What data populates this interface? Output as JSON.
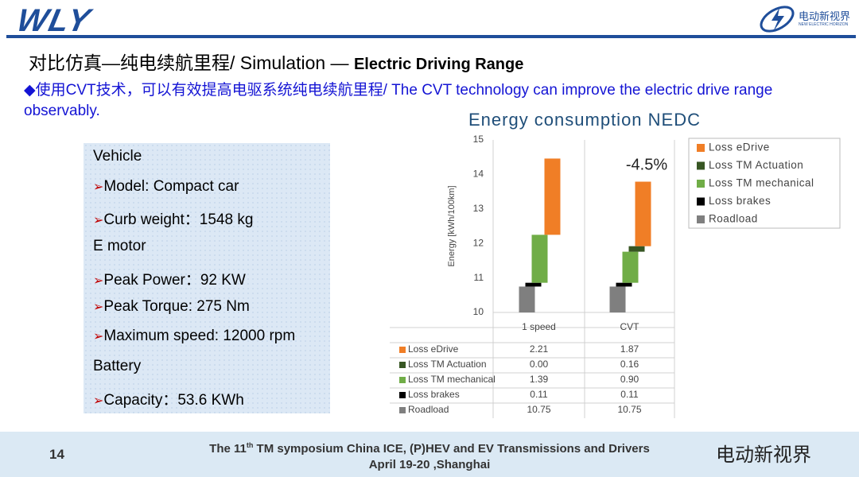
{
  "header": {
    "logo": "WLY",
    "brand": "电动新视界",
    "brand_sub": "NEW ELECTRIC HORIZON"
  },
  "slide": {
    "title": "对比仿真—纯电续航里程/ Simulation — ",
    "title_bold": "Electric Driving Range",
    "lead": "◆使用CVT技术，可以有效提高电驱系统纯电续航里程/  The CVT technology can improve the electric drive range observably.",
    "specs": [
      {
        "text": "Vehicle",
        "bullet": false
      },
      {
        "text": "Model: Compact car",
        "bullet": true
      },
      {
        "text": "Curb weight：1548  kg",
        "bullet": true
      },
      {
        "text": "E motor",
        "bullet": false
      },
      {
        "text": "Peak Power：92  KW",
        "bullet": true
      },
      {
        "text": "Peak Torque: 275  Nm",
        "bullet": true
      },
      {
        "text": "Maximum speed:  12000  rpm",
        "bullet": true
      },
      {
        "text": "Battery",
        "bullet": false
      },
      {
        "text": "Capacity：53.6 KWh",
        "bullet": true
      }
    ]
  },
  "footer": {
    "page": "14",
    "line1_a": "The 11",
    "line1_sup": "th",
    "line1_b": " TM symposium China ICE, (P)HEV and EV Transmissions and Drivers",
    "line2": "April 19-20 ,Shanghai",
    "watermark": "电动新视界"
  },
  "chart_data": {
    "type": "waterfall",
    "title": "Energy consumption NEDC",
    "y_label": "Energy [kWh/100km]",
    "annotation": "-4.5%",
    "categories": [
      "1 speed",
      "CVT"
    ],
    "ylim": [
      10,
      15
    ],
    "yticks": [
      10,
      11,
      12,
      13,
      14,
      15
    ],
    "series": [
      {
        "name": "Loss eDrive",
        "color": "#f07e26",
        "values": [
          2.21,
          1.87
        ]
      },
      {
        "name": "Loss TM Actuation",
        "color": "#375623",
        "values": [
          0,
          0.16
        ],
        "value_labels": [
          "0.00",
          "0.16"
        ]
      },
      {
        "name": "Loss TM mechanical",
        "color": "#70ad47",
        "values": [
          1.39,
          0.9
        ],
        "value_labels": [
          "1.39",
          "0.90"
        ]
      },
      {
        "name": "Loss brakes",
        "color": "#000000",
        "values": [
          0.11,
          0.11
        ]
      },
      {
        "name": "Roadload",
        "color": "#7f7f7f",
        "values": [
          10.75,
          10.75
        ]
      }
    ]
  }
}
